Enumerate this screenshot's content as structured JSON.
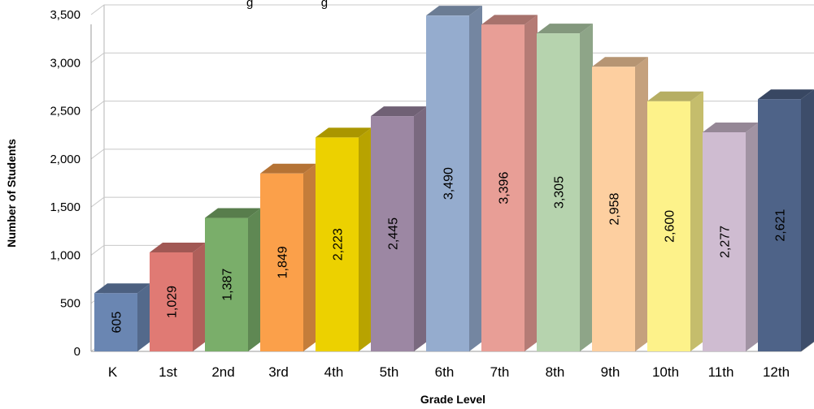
{
  "chart_data": {
    "type": "bar",
    "title": "",
    "title_fragment": "g                    g",
    "xlabel": "Grade Level",
    "ylabel": "Number of Students",
    "ylim": [
      0,
      3500
    ],
    "yticks": [
      0,
      500,
      1000,
      1500,
      2000,
      2500,
      3000,
      3500
    ],
    "ytick_labels": [
      "0",
      "500",
      "1,000",
      "1,500",
      "2,000",
      "2,500",
      "3,000",
      "3,500"
    ],
    "grid": true,
    "style": "3d-column",
    "categories": [
      "K",
      "1st",
      "2nd",
      "3rd",
      "4th",
      "5th",
      "6th",
      "7th",
      "8th",
      "9th",
      "10th",
      "11th",
      "12th"
    ],
    "values": [
      605,
      1029,
      1387,
      1849,
      2223,
      2445,
      3490,
      3396,
      3305,
      2958,
      2600,
      2277,
      2621
    ],
    "value_labels": [
      "605",
      "1,029",
      "1,387",
      "1,849",
      "2,223",
      "2,445",
      "3,490",
      "3,396",
      "3,305",
      "2,958",
      "2,600",
      "2,277",
      "2,621"
    ],
    "colors": [
      "#6a86b2",
      "#e07a74",
      "#7aae6a",
      "#fba04a",
      "#ecd100",
      "#9c87a3",
      "#95acce",
      "#e89e96",
      "#b6d3ae",
      "#fdcfa0",
      "#fdf28a",
      "#cfbcd1",
      "#4e6388"
    ]
  }
}
